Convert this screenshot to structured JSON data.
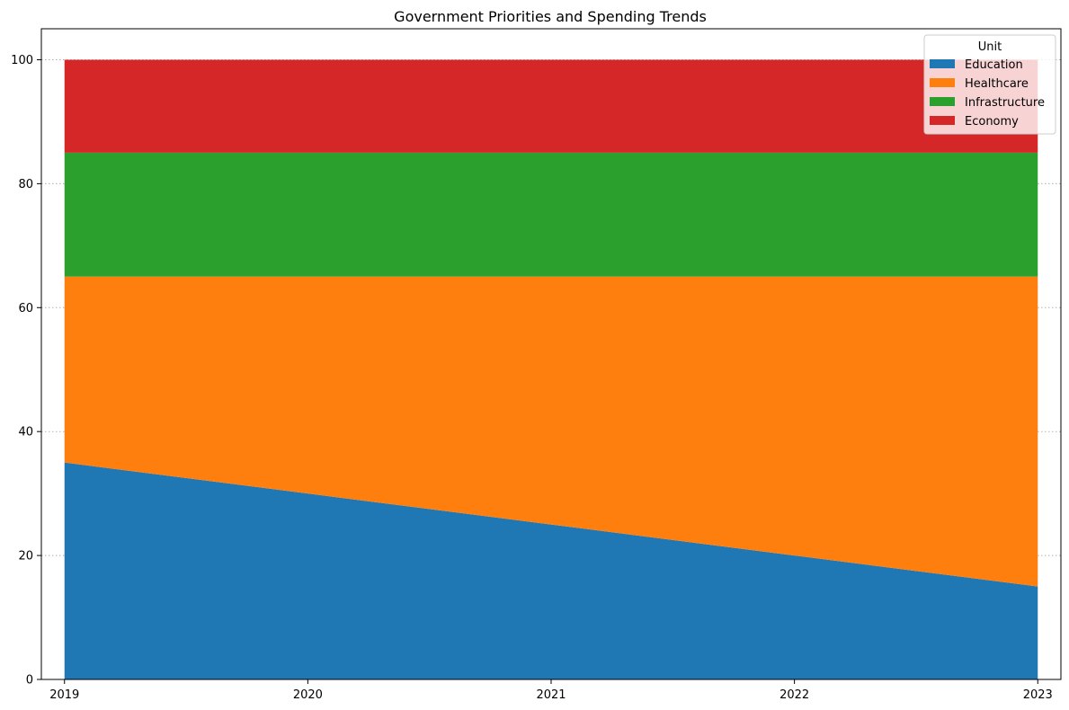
{
  "chart_data": {
    "type": "area",
    "stacked": true,
    "title": "Government Priorities and Spending Trends",
    "xlabel": "",
    "ylabel": "",
    "x": [
      "2019",
      "2020",
      "2021",
      "2022",
      "2023"
    ],
    "series": [
      {
        "name": "Education",
        "values": [
          35,
          30,
          25,
          20,
          15
        ],
        "color": "#1f77b4"
      },
      {
        "name": "Healthcare",
        "values": [
          30,
          35,
          40,
          45,
          50
        ],
        "color": "#ff7f0e"
      },
      {
        "name": "Infrastructure",
        "values": [
          20,
          20,
          20,
          20,
          20
        ],
        "color": "#2ca02c"
      },
      {
        "name": "Economy",
        "values": [
          15,
          15,
          15,
          15,
          15
        ],
        "color": "#d62728"
      }
    ],
    "ylim": [
      0,
      105
    ],
    "yticks": [
      0,
      20,
      40,
      60,
      80,
      100
    ],
    "grid": "y-dotted",
    "legend": {
      "title": "Unit",
      "position": "top-right"
    }
  }
}
